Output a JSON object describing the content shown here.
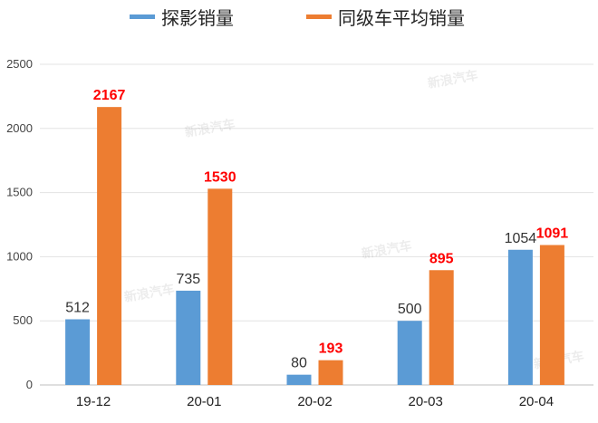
{
  "chart_data": {
    "type": "bar",
    "categories": [
      "19-12",
      "20-01",
      "20-02",
      "20-03",
      "20-04"
    ],
    "series": [
      {
        "name": "探影销量",
        "values": [
          512,
          735,
          80,
          500,
          1054
        ],
        "color": "#5b9bd5",
        "label_color": "#333333"
      },
      {
        "name": "同级车平均销量",
        "values": [
          2167,
          1530,
          193,
          895,
          1091
        ],
        "color": "#ed7d31",
        "label_color": "#ff0000"
      }
    ],
    "yticks": [
      0,
      500,
      1000,
      1500,
      2000,
      2500
    ],
    "ylim": [
      0,
      2500
    ],
    "grid": true,
    "legend": "top"
  },
  "watermark": "新浪汽车"
}
